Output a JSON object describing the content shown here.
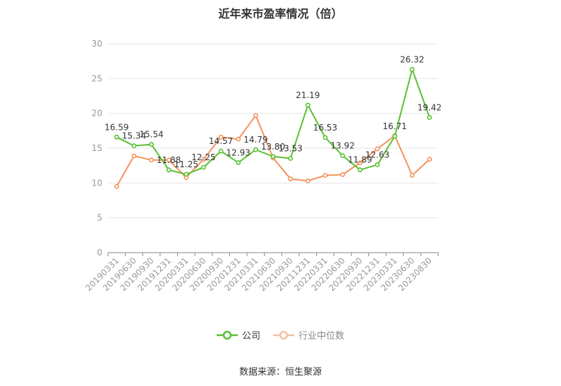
{
  "chart_data": {
    "type": "line",
    "title": "近年来市盈率情况（倍）",
    "categories": [
      "20190331",
      "20190630",
      "20190930",
      "20191231",
      "20200331",
      "20200630",
      "20200930",
      "20201231",
      "20210331",
      "20210630",
      "20210930",
      "20211231",
      "20220331",
      "20220630",
      "20220930",
      "20221231",
      "20230331",
      "20230630",
      "20230830"
    ],
    "series": [
      {
        "name": "公司",
        "color": "#5ac133",
        "values": [
          16.59,
          15.34,
          15.54,
          11.88,
          11.25,
          12.25,
          14.57,
          12.93,
          14.79,
          13.8,
          13.53,
          21.19,
          16.53,
          13.92,
          11.89,
          12.63,
          16.71,
          26.32,
          19.42
        ],
        "labels": [
          "16.59",
          "15.34",
          "15.54",
          "11.88",
          "11.25",
          "12.25",
          "14.57",
          "12.93",
          "14.79",
          "13.80",
          "13.53",
          "21.19",
          "16.53",
          "13.92",
          "11.89",
          "12.63",
          "16.71",
          "26.32",
          "19.42"
        ]
      },
      {
        "name": "行业中位数",
        "color": "#f4935c",
        "values": [
          9.5,
          13.9,
          13.3,
          13.3,
          10.8,
          13.4,
          16.6,
          16.3,
          19.7,
          13.6,
          10.6,
          10.3,
          11.1,
          11.2,
          12.9,
          14.9,
          16.8,
          11.1,
          13.4
        ]
      }
    ],
    "yticks": [
      0,
      5,
      10,
      15,
      20,
      25,
      30
    ],
    "ylim": [
      0,
      30
    ],
    "grid": true,
    "legend_position": "bottom"
  },
  "source": "数据来源：恒生聚源"
}
